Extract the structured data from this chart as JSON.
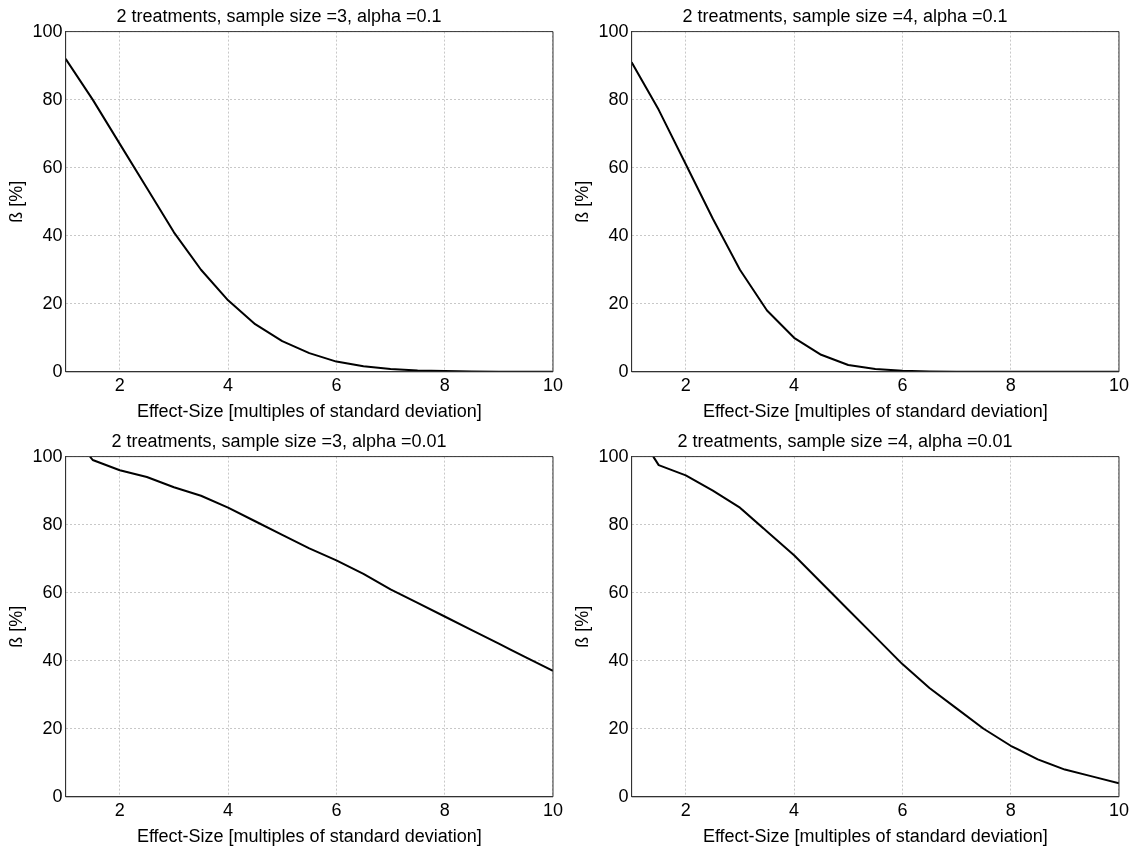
{
  "chart_data": [
    {
      "type": "line",
      "title": "2 treatments, sample size =3, alpha =0.1",
      "xlabel": "Effect-Size [multiples of standard deviation]",
      "ylabel": "ß [%]",
      "xlim": [
        1,
        10
      ],
      "xticks": [
        2,
        4,
        6,
        8,
        10
      ],
      "ylim": [
        0,
        100
      ],
      "yticks": [
        0,
        20,
        40,
        60,
        80,
        100
      ],
      "grid": true,
      "marker": "none",
      "line_style": "solid",
      "series": [
        {
          "color": "#000000",
          "x": [
            1,
            1.5,
            2,
            2.5,
            3,
            3.5,
            4,
            4.5,
            5,
            5.5,
            6,
            6.5,
            7,
            7.5,
            8,
            8.5,
            9,
            9.5,
            10
          ],
          "values": [
            92,
            80,
            67,
            54,
            41,
            30,
            21,
            14,
            9,
            5.5,
            3,
            1.6,
            0.8,
            0.4,
            0.2,
            0.1,
            0,
            0,
            0
          ]
        }
      ]
    },
    {
      "type": "line",
      "title": "2 treatments, sample size =4, alpha =0.1",
      "xlabel": "Effect-Size [multiples of standard deviation]",
      "ylabel": "ß [%]",
      "xlim": [
        1,
        10
      ],
      "xticks": [
        2,
        4,
        6,
        8,
        10
      ],
      "ylim": [
        0,
        100
      ],
      "yticks": [
        0,
        20,
        40,
        60,
        80,
        100
      ],
      "grid": true,
      "marker": "none",
      "line_style": "solid",
      "series": [
        {
          "color": "#000000",
          "x": [
            1,
            1.5,
            2,
            2.5,
            3,
            3.5,
            4,
            4.5,
            5,
            5.5,
            6,
            6.5,
            7,
            7.5,
            8,
            8.5,
            9,
            9.5,
            10
          ],
          "values": [
            91,
            77,
            61,
            45,
            30,
            18,
            10,
            5,
            2,
            0.8,
            0.3,
            0.1,
            0,
            0,
            0,
            0,
            0,
            0,
            0
          ]
        }
      ]
    },
    {
      "type": "line",
      "title": "2 treatments, sample size =3, alpha =0.01",
      "xlabel": "Effect-Size [multiples of standard deviation]",
      "ylabel": "ß [%]",
      "xlim": [
        1,
        10
      ],
      "xticks": [
        2,
        4,
        6,
        8,
        10
      ],
      "ylim": [
        0,
        100
      ],
      "yticks": [
        0,
        20,
        40,
        60,
        80,
        100
      ],
      "grid": true,
      "marker": "none",
      "line_style": "solid",
      "series": [
        {
          "color": "#000000",
          "x": [
            1.45,
            1.5,
            2,
            2.5,
            3,
            3.5,
            4,
            4.5,
            5,
            5.5,
            6,
            6.5,
            7,
            7.5,
            8,
            8.5,
            9,
            9.5,
            10
          ],
          "values": [
            100,
            99,
            96,
            94,
            91,
            88.5,
            85,
            81,
            77,
            73,
            69.5,
            65.5,
            61,
            57,
            53,
            49,
            45,
            41,
            37
          ]
        }
      ]
    },
    {
      "type": "line",
      "title": "2 treatments, sample size =4, alpha =0.01",
      "xlabel": "Effect-Size [multiples of standard deviation]",
      "ylabel": "ß [%]",
      "xlim": [
        1,
        10
      ],
      "xticks": [
        2,
        4,
        6,
        8,
        10
      ],
      "ylim": [
        0,
        100
      ],
      "yticks": [
        0,
        20,
        40,
        60,
        80,
        100
      ],
      "grid": true,
      "marker": "none",
      "line_style": "solid",
      "series": [
        {
          "color": "#000000",
          "x": [
            1.4,
            1.5,
            2,
            2.5,
            3,
            3.5,
            4,
            4.5,
            5,
            5.5,
            6,
            6.5,
            7,
            7.5,
            8,
            8.5,
            9,
            9.5,
            10
          ],
          "values": [
            100,
            97.5,
            94.5,
            90,
            85,
            78,
            71,
            63,
            55,
            47,
            39,
            32,
            26,
            20,
            15,
            11,
            8,
            6,
            4
          ]
        }
      ]
    }
  ]
}
